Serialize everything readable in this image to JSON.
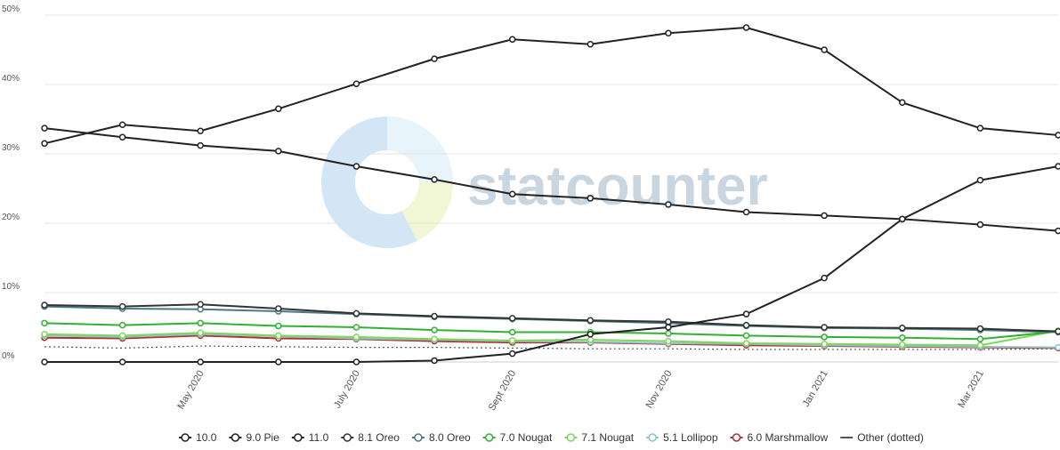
{
  "chart_data": {
    "type": "line",
    "watermark": "statcounter",
    "categories": [
      null,
      null,
      "May 2020",
      null,
      "July 2020",
      null,
      "Sept 2020",
      null,
      "Nov 2020",
      null,
      "Jan 2021",
      null,
      "Mar 2021",
      null
    ],
    "ylim": [
      0,
      50
    ],
    "yticks": [
      {
        "value": 0,
        "label": "0%"
      },
      {
        "value": 10,
        "label": "10%"
      },
      {
        "value": 20,
        "label": "20%"
      },
      {
        "value": 30,
        "label": "30%"
      },
      {
        "value": 40,
        "label": "40%"
      },
      {
        "value": 50,
        "label": "50%"
      }
    ],
    "grid": true,
    "legend": "bottom",
    "series": [
      {
        "name": "10.0",
        "color": "#222222",
        "values": [
          31.5,
          34.2,
          33.3,
          36.5,
          40.1,
          43.7,
          46.5,
          45.8,
          47.4,
          48.2,
          45.0,
          37.4,
          33.7,
          32.7
        ]
      },
      {
        "name": "9.0 Pie",
        "color": "#222222",
        "values": [
          33.7,
          32.4,
          31.2,
          30.4,
          28.2,
          26.3,
          24.2,
          23.6,
          22.7,
          21.6,
          21.1,
          20.6,
          19.8,
          18.9
        ]
      },
      {
        "name": "11.0",
        "color": "#222222",
        "values": [
          0,
          0,
          0,
          0,
          0,
          0.2,
          1.2,
          4.0,
          5.0,
          6.9,
          12.1,
          20.6,
          26.2,
          28.2
        ]
      },
      {
        "name": "8.1 Oreo",
        "color": "#333333",
        "values": [
          8.2,
          8.0,
          8.3,
          7.7,
          7.0,
          6.6,
          6.3,
          6.0,
          5.8,
          5.3,
          5.0,
          4.9,
          4.8,
          4.4
        ]
      },
      {
        "name": "8.0 Oreo",
        "color": "#4a7a80",
        "values": [
          8.0,
          7.7,
          7.6,
          7.3,
          6.9,
          6.5,
          6.2,
          5.9,
          5.6,
          5.2,
          4.9,
          4.8,
          4.6,
          4.3
        ]
      },
      {
        "name": "7.0 Nougat",
        "color": "#33b033",
        "values": [
          5.6,
          5.3,
          5.6,
          5.2,
          5.0,
          4.6,
          4.3,
          4.3,
          4.1,
          3.8,
          3.6,
          3.5,
          3.3,
          4.4
        ]
      },
      {
        "name": "7.1 Nougat",
        "color": "#7fd65a",
        "values": [
          4.0,
          3.8,
          4.2,
          3.8,
          3.6,
          3.3,
          3.1,
          3.2,
          3.0,
          2.7,
          2.6,
          2.5,
          2.4,
          4.5
        ]
      },
      {
        "name": "5.1 Lollipop",
        "color": "#8cc4c8",
        "values": [
          3.8,
          3.6,
          4.0,
          3.7,
          3.4,
          3.2,
          3.0,
          2.9,
          2.7,
          2.6,
          2.4,
          2.3,
          2.2,
          2.1
        ]
      },
      {
        "name": "6.0 Marshmallow",
        "color": "#b03030",
        "values": [
          3.5,
          3.4,
          3.8,
          3.4,
          3.3,
          3.0,
          2.8,
          2.8,
          2.6,
          2.4,
          2.3,
          2.2,
          2.1,
          2.0
        ]
      },
      {
        "name": "Other (dotted)",
        "color": "#555555",
        "dash": "dotted",
        "values": [
          2.2,
          2.0,
          2.3,
          2.2,
          2.1,
          2.1,
          2.0,
          1.9,
          1.9,
          1.8,
          1.8,
          1.8,
          1.8,
          1.9
        ]
      }
    ]
  }
}
